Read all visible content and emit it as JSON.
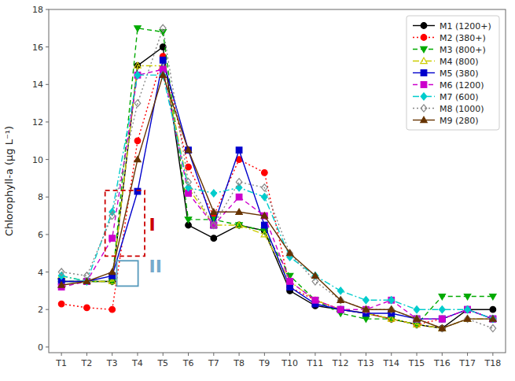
{
  "chart_data": {
    "type": "line",
    "categories": [
      "T1",
      "T2",
      "T3",
      "T4",
      "T5",
      "T6",
      "T7",
      "T8",
      "T9",
      "T10",
      "T11",
      "T12",
      "T13",
      "T14",
      "T15",
      "T16",
      "T17",
      "T18"
    ],
    "series": [
      {
        "name": "M1 (1200+)",
        "color": "#000000",
        "marker": "circle",
        "line_style": "solid",
        "values": [
          3.5,
          3.5,
          3.5,
          15.0,
          16.0,
          6.5,
          5.8,
          6.5,
          6.2,
          3.0,
          2.2,
          2.0,
          1.8,
          1.5,
          1.2,
          1.0,
          2.0,
          2.0
        ]
      },
      {
        "name": "M2 (380+)",
        "color": "#ff0000",
        "marker": "circle",
        "line_style": "dotted",
        "values": [
          2.3,
          2.1,
          2.0,
          11.0,
          15.5,
          9.6,
          7.0,
          10.0,
          9.3,
          3.2,
          2.5,
          2.0,
          1.8,
          1.5,
          1.2,
          1.5,
          2.0,
          1.5
        ]
      },
      {
        "name": "M3 (800+)",
        "color": "#00aa00",
        "marker": "triangle-down",
        "line_style": "dashed",
        "values": [
          3.5,
          3.5,
          3.5,
          17.0,
          16.8,
          6.8,
          6.8,
          6.5,
          6.2,
          3.8,
          2.5,
          1.8,
          1.5,
          1.5,
          1.2,
          2.7,
          2.7,
          2.7
        ]
      },
      {
        "name": "M4 (800)",
        "color": "#cccc00",
        "marker": "triangle-up-open",
        "line_style": "dashdot",
        "values": [
          3.8,
          3.5,
          3.5,
          15.0,
          15.0,
          8.5,
          6.5,
          6.5,
          6.0,
          3.5,
          2.5,
          2.0,
          1.8,
          1.5,
          1.2,
          1.0,
          1.5,
          1.5
        ]
      },
      {
        "name": "M5 (380)",
        "color": "#0000cc",
        "marker": "square",
        "line_style": "solid",
        "values": [
          3.5,
          3.5,
          3.8,
          8.3,
          15.3,
          10.5,
          6.5,
          10.5,
          6.5,
          3.2,
          2.3,
          2.0,
          1.8,
          1.8,
          1.5,
          1.5,
          2.0,
          1.5
        ]
      },
      {
        "name": "M6 (1200)",
        "color": "#cc00cc",
        "marker": "square",
        "line_style": "dashed",
        "values": [
          3.2,
          3.5,
          5.8,
          14.5,
          14.8,
          8.2,
          6.5,
          8.0,
          7.0,
          3.5,
          2.5,
          2.0,
          2.0,
          2.5,
          1.5,
          1.5,
          2.0,
          1.5
        ]
      },
      {
        "name": "M7 (600)",
        "color": "#00cccc",
        "marker": "diamond",
        "line_style": "dashdot",
        "values": [
          3.8,
          3.5,
          7.2,
          14.5,
          14.5,
          8.5,
          8.2,
          8.5,
          8.0,
          4.8,
          3.8,
          3.0,
          2.5,
          2.5,
          2.0,
          2.0,
          2.0,
          1.5
        ]
      },
      {
        "name": "M8 (1000)",
        "color": "#888888",
        "marker": "diamond-open",
        "line_style": "dotted",
        "values": [
          4.0,
          3.8,
          7.0,
          13.0,
          17.0,
          8.8,
          6.5,
          8.8,
          8.5,
          5.0,
          3.5,
          2.5,
          2.0,
          2.0,
          1.5,
          1.0,
          1.5,
          1.0
        ]
      },
      {
        "name": "M9 (280)",
        "color": "#663300",
        "marker": "triangle-up",
        "line_style": "solid",
        "values": [
          3.3,
          3.5,
          4.0,
          10.0,
          14.5,
          10.5,
          7.2,
          7.2,
          7.0,
          5.0,
          3.8,
          2.5,
          2.0,
          2.0,
          1.5,
          1.0,
          1.5,
          1.5
        ]
      }
    ],
    "y_label": "Chlorophyll-a (μg L⁻¹)",
    "ylim": [
      -0.3,
      18
    ],
    "yticks": [
      0,
      2,
      4,
      6,
      8,
      10,
      12,
      14,
      16,
      18
    ],
    "grid": false,
    "legend": "upper right",
    "annotations": [
      {
        "text": "I",
        "color": "#cc0000",
        "x": 3.45,
        "y": 6.5,
        "box": {
          "x0": 1.72,
          "y0": 4.85,
          "width": 1.56,
          "height": 3.5,
          "color": "#cc0000",
          "line_style": "dashed"
        }
      },
      {
        "text": "II",
        "color": "#77aacc",
        "x": 3.45,
        "y": 4.3,
        "box": {
          "x0": 2.18,
          "y0": 3.25,
          "width": 0.84,
          "height": 1.35,
          "color": "#5599bb",
          "line_style": "solid"
        }
      }
    ]
  }
}
